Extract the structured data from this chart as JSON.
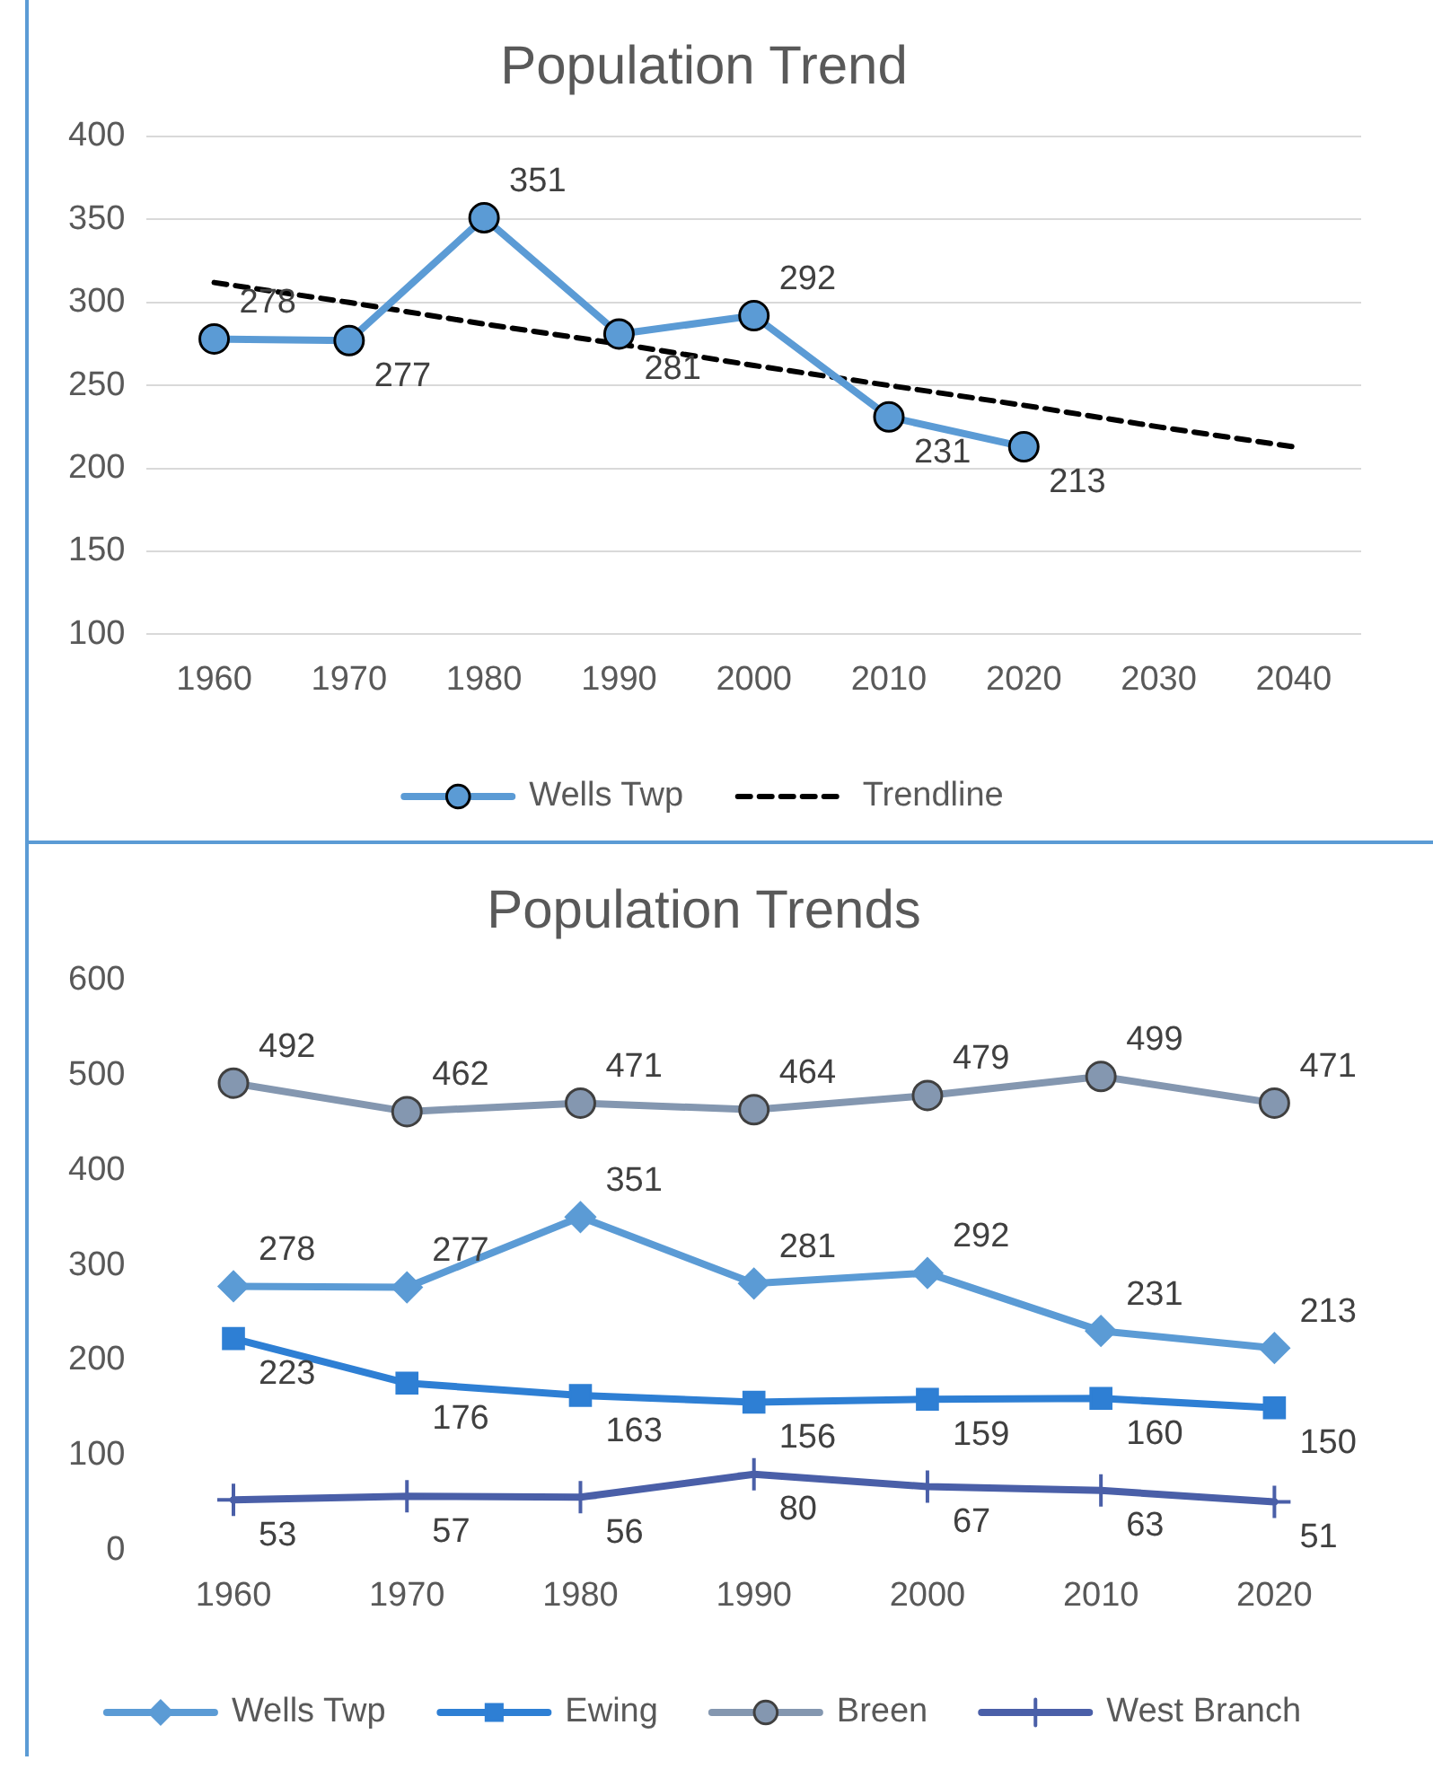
{
  "chart_data": [
    {
      "type": "line",
      "title": "Population Trend",
      "categories": [
        "1960",
        "1970",
        "1980",
        "1990",
        "2000",
        "2010",
        "2020",
        "2030",
        "2040"
      ],
      "series": [
        {
          "name": "Wells Twp",
          "color": "#5b9bd5",
          "marker": "circle",
          "line_style": "solid",
          "values": [
            278,
            277,
            351,
            281,
            292,
            231,
            213,
            null,
            null
          ],
          "value_labels": [
            "278",
            "277",
            "351",
            "281",
            "292",
            "231",
            "213",
            null,
            null
          ]
        },
        {
          "name": "Trendline",
          "type": "line",
          "color": "#000000",
          "marker": "none",
          "line_style": "dashed",
          "values": [
            312,
            300,
            287,
            275,
            262,
            250,
            238,
            225,
            213
          ]
        }
      ],
      "ylim": [
        100,
        400
      ],
      "yticks": [
        100,
        150,
        200,
        250,
        300,
        350,
        400
      ],
      "grid": "y",
      "legend": "bottom"
    },
    {
      "type": "line",
      "title": "Population Trends",
      "categories": [
        "1960",
        "1970",
        "1980",
        "1990",
        "2000",
        "2010",
        "2020"
      ],
      "series": [
        {
          "name": "Wells Twp",
          "color": "#5b9bd5",
          "marker": "diamond",
          "values": [
            278,
            277,
            351,
            281,
            292,
            231,
            213
          ]
        },
        {
          "name": "Ewing",
          "color": "#2e7fd4",
          "marker": "square",
          "values": [
            223,
            176,
            163,
            156,
            159,
            160,
            150
          ]
        },
        {
          "name": "Breen",
          "color": "#8497b0",
          "marker": "circle",
          "values": [
            492,
            462,
            471,
            464,
            479,
            499,
            471
          ]
        },
        {
          "name": "West Branch",
          "color": "#4a5fa8",
          "marker": "cross",
          "values": [
            53,
            57,
            56,
            80,
            67,
            63,
            51
          ]
        }
      ],
      "ylim": [
        0,
        600
      ],
      "yticks": [
        0,
        100,
        200,
        300,
        400,
        500,
        600
      ],
      "grid": false,
      "legend": "bottom",
      "data_labels": true
    }
  ]
}
